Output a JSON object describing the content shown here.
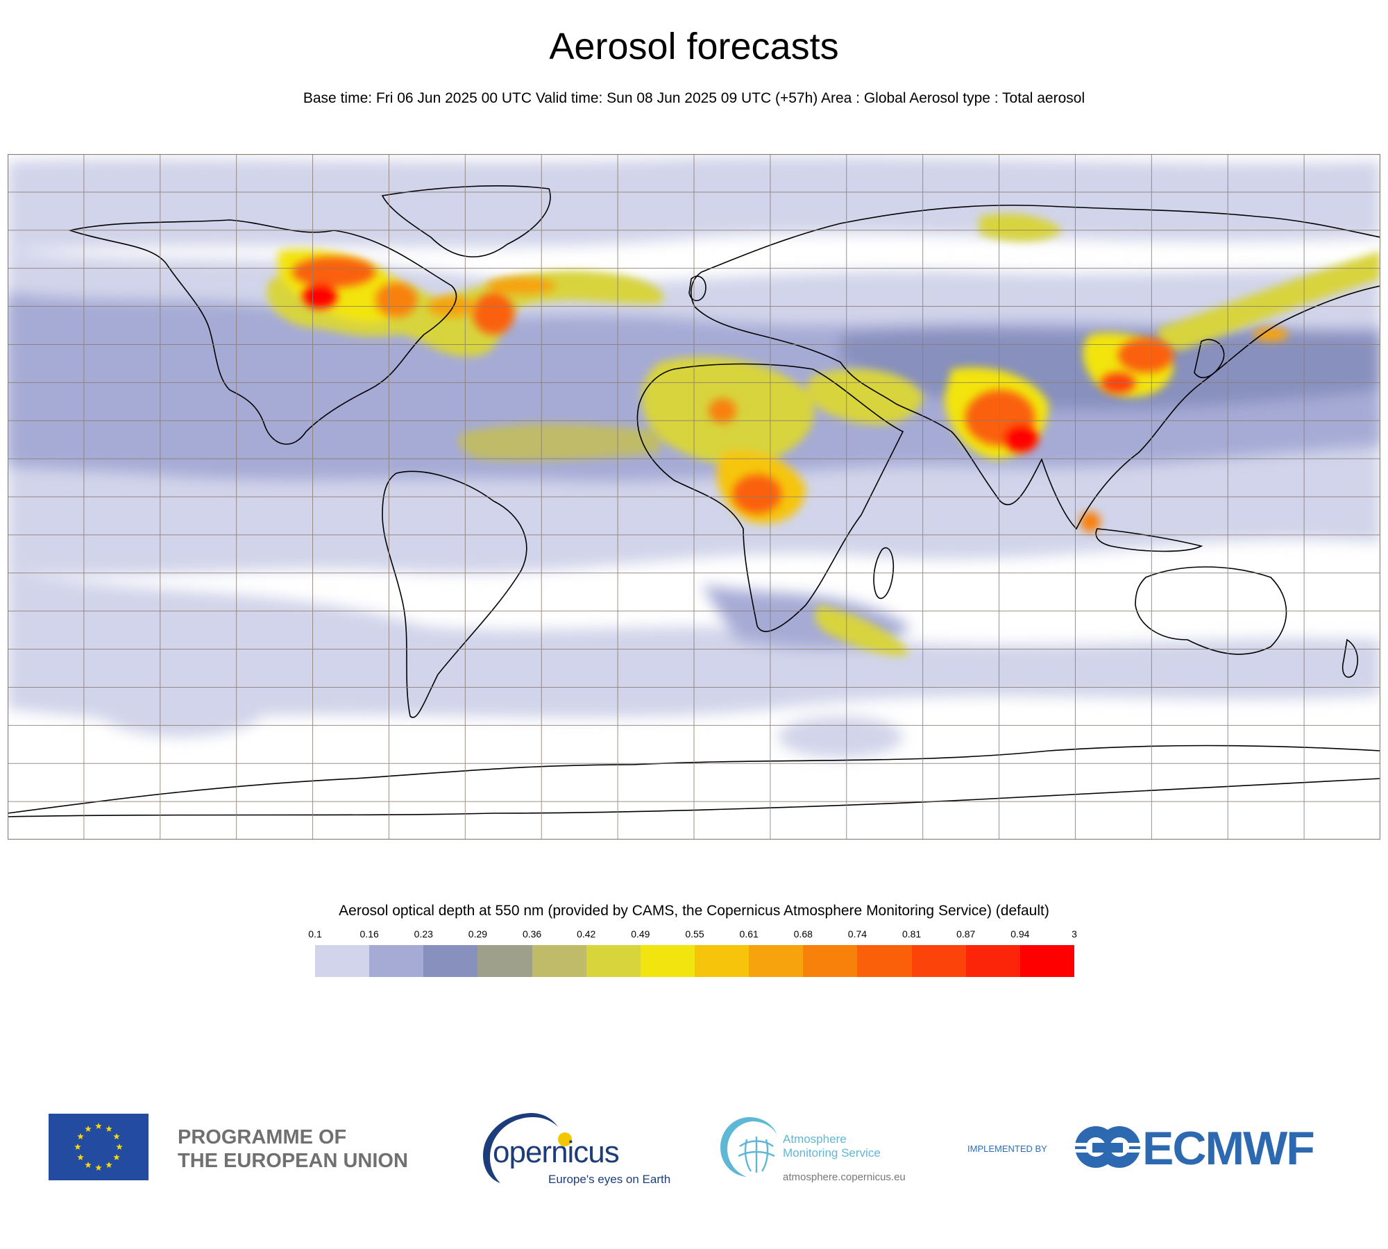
{
  "header": {
    "title": "Aerosol forecasts",
    "subtitle": "Base time: Fri 06 Jun 2025 00 UTC Valid time: Sun 08 Jun 2025 09 UTC (+57h) Area : Global Aerosol type : Total aerosol"
  },
  "legend": {
    "title": "Aerosol optical depth at 550 nm (provided by CAMS, the Copernicus Atmosphere Monitoring Service) (default)",
    "ticks": [
      "0.1",
      "0.16",
      "0.23",
      "0.29",
      "0.36",
      "0.42",
      "0.49",
      "0.55",
      "0.61",
      "0.68",
      "0.74",
      "0.81",
      "0.87",
      "0.94",
      "3"
    ],
    "colors": [
      "#d1d4ea",
      "#a6abd5",
      "#8890bd",
      "#9ea08c",
      "#bfbb68",
      "#d8d43c",
      "#f2e40e",
      "#f6c50b",
      "#f6a30d",
      "#f8810b",
      "#fa600a",
      "#fc430a",
      "#fd2509",
      "#ff0000"
    ]
  },
  "footer": {
    "eu_line1": "PROGRAMME OF",
    "eu_line2": "THE EUROPEAN UNION",
    "copernicus_word": "opernicus",
    "copernicus_tagline": "Europe's eyes on Earth",
    "cams_line1": "Atmosphere",
    "cams_line2": "Monitoring Service",
    "cams_url": "atmosphere.copernicus.eu",
    "implemented_by": "IMPLEMENTED BY",
    "ecmwf": "ECMWF"
  },
  "map": {
    "ocean_color": "#ffffff",
    "grid_color": "#8a7d72",
    "coast_color": "#000000",
    "plumes": [
      {
        "region": "North Atlantic",
        "aod": 0.6
      },
      {
        "region": "Canada",
        "aod": 1.0
      },
      {
        "region": "Sahara",
        "aod": 0.6
      },
      {
        "region": "Central Africa",
        "aod": 0.9
      },
      {
        "region": "India",
        "aod": 1.0
      },
      {
        "region": "East China",
        "aod": 0.9
      },
      {
        "region": "North Pacific",
        "aod": 0.5
      }
    ]
  }
}
